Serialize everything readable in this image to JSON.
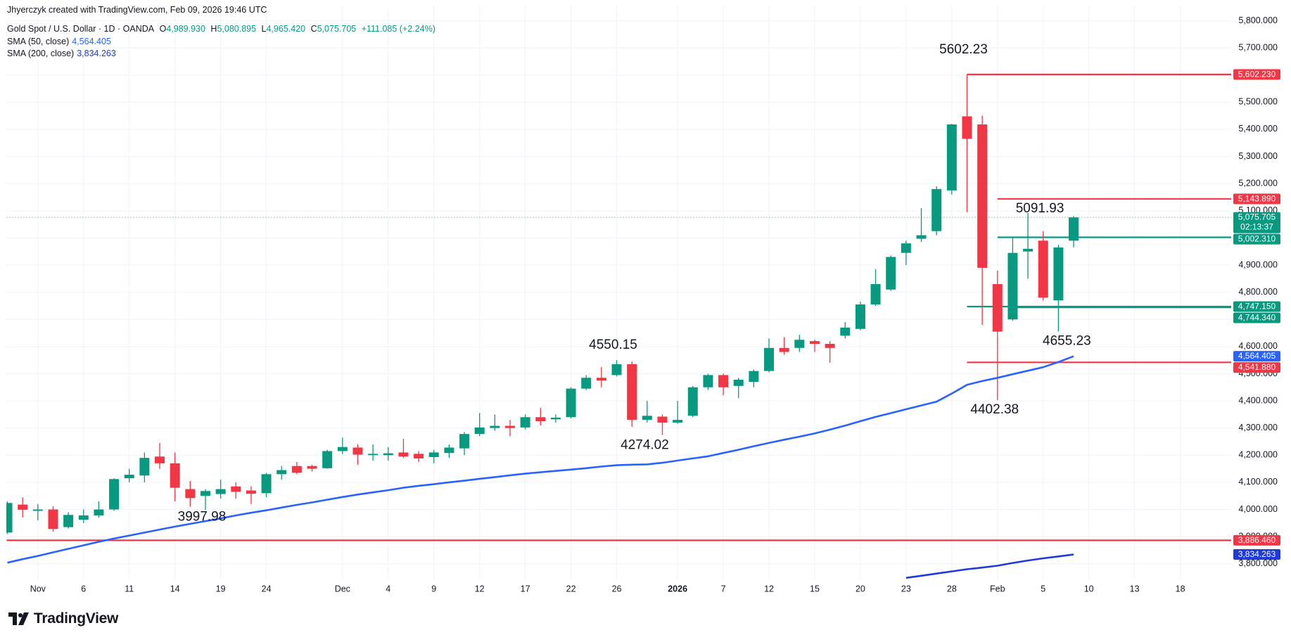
{
  "chart_data": {
    "type": "candlestick",
    "attribution": "Jhyerczyk created with TradingView.com, Feb 09, 2026 19:46 UTC",
    "title": "Gold Spot / U.S. Dollar · 1D · OANDA",
    "ohlc_legend": [
      {
        "key": "O",
        "label": "4,989.930"
      },
      {
        "key": "H",
        "label": "5,080.895"
      },
      {
        "key": "L",
        "label": "4,965.420"
      },
      {
        "key": "C",
        "label": "5,075.705"
      }
    ],
    "change_label": "+111.085 (+2.24%)",
    "price_countdown": "02:13:37",
    "up_color": "#089981",
    "down_color": "#f23645",
    "categories": [
      null,
      null,
      "Nov",
      null,
      null,
      "6",
      null,
      null,
      "11",
      null,
      null,
      "14",
      null,
      null,
      "19",
      null,
      null,
      "24",
      null,
      null,
      null,
      null,
      "Dec",
      null,
      null,
      "4",
      null,
      null,
      "9",
      null,
      null,
      "12",
      null,
      null,
      "17",
      null,
      null,
      "22",
      null,
      null,
      "26",
      null,
      null,
      null,
      "2026",
      null,
      null,
      "7",
      null,
      null,
      "12",
      null,
      null,
      "15",
      null,
      null,
      "20",
      null,
      null,
      "23",
      null,
      null,
      "28",
      null,
      null,
      "Feb",
      null,
      null,
      "5",
      null,
      null,
      "10",
      null,
      null,
      "13",
      null,
      null,
      "18"
    ],
    "open": [
      3915,
      4018,
      3995,
      4000,
      3935,
      3962,
      3978,
      4000,
      4115,
      4125,
      4195,
      4170,
      4075,
      4050,
      4057,
      4085,
      4070,
      4060,
      4130,
      4160,
      4160,
      4152,
      4215,
      4228,
      4200,
      4200,
      4210,
      4205,
      4193,
      4208,
      4225,
      4278,
      4300,
      4308,
      4302,
      4340,
      4332,
      4340,
      4445,
      4485,
      4495,
      4535,
      4330,
      4342,
      4320,
      4345,
      4450,
      4495,
      4455,
      4470,
      4510,
      4595,
      4595,
      4620,
      4610,
      4640,
      4665,
      4755,
      4810,
      4945,
      4997,
      5025,
      5175,
      5448,
      5418,
      4830,
      4700,
      4950,
      4990,
      4770,
      4989.93,
      null,
      null,
      null,
      null,
      null,
      null,
      null
    ],
    "high": [
      4030,
      4045,
      4020,
      4012,
      3990,
      4000,
      4030,
      4115,
      4150,
      4210,
      4245,
      4210,
      4105,
      4075,
      4110,
      4100,
      4085,
      4135,
      4160,
      4175,
      4165,
      4220,
      4265,
      4240,
      4240,
      4230,
      4260,
      4215,
      4220,
      4240,
      4285,
      4355,
      4350,
      4330,
      4350,
      4375,
      4350,
      4450,
      4495,
      4525,
      4550.15,
      4545,
      4400,
      4350,
      4400,
      4455,
      4500,
      4500,
      4485,
      4515,
      4630,
      4635,
      4643,
      4625,
      4620,
      4690,
      4765,
      4885,
      4935,
      4990,
      5110,
      5190,
      5420,
      5602.23,
      5450,
      4880,
      5000,
      5091.93,
      5025,
      4975,
      5080.895,
      null,
      null,
      null,
      null,
      null,
      null,
      null
    ],
    "low": [
      3910,
      3970,
      3960,
      3918,
      3930,
      3950,
      3970,
      3995,
      4100,
      4100,
      4150,
      4030,
      4010,
      3997.98,
      4040,
      4040,
      4020,
      4045,
      4110,
      4130,
      4140,
      4150,
      4205,
      4165,
      4180,
      4180,
      4190,
      4175,
      4170,
      4190,
      4200,
      4270,
      4290,
      4270,
      4295,
      4310,
      4320,
      4335,
      4440,
      4450,
      4490,
      4305,
      4320,
      4274.02,
      4315,
      4340,
      4440,
      4420,
      4410,
      4450,
      4505,
      4570,
      4580,
      4580,
      4540,
      4630,
      4660,
      4750,
      4805,
      4900,
      4985,
      5010,
      5160,
      5095,
      4680,
      4402.38,
      4695,
      4850,
      4770,
      4655.23,
      4965.42,
      null,
      null,
      null,
      null,
      null,
      null,
      null
    ],
    "close": [
      4024,
      3999,
      4000,
      3928,
      3980,
      3978,
      4000,
      4112,
      4128,
      4190,
      4170,
      4080,
      4042,
      4068,
      4075,
      4065,
      4058,
      4130,
      4145,
      4135,
      4150,
      4215,
      4230,
      4202,
      4205,
      4207,
      4195,
      4188,
      4210,
      4228,
      4278,
      4302,
      4308,
      4300,
      4340,
      4325,
      4338,
      4445,
      4485,
      4475,
      4535,
      4330,
      4345,
      4320,
      4330,
      4450,
      4495,
      4450,
      4478,
      4510,
      4595,
      4580,
      4625,
      4610,
      4595,
      4670,
      4755,
      4830,
      4930,
      4980,
      5010,
      5180,
      5418,
      5365,
      4890,
      4655,
      4945,
      4960,
      4780,
      4965,
      5075.705,
      null,
      null,
      null,
      null,
      null,
      null,
      null
    ],
    "overlays": [
      {
        "name": "SMA (50, close)",
        "color": "#2962ff",
        "last_label": "4,564.405",
        "values": [
          3804,
          3817,
          3829,
          3842,
          3855,
          3868,
          3881,
          3893,
          3904,
          3915,
          3926,
          3937,
          3947,
          3957,
          3967,
          3978,
          3988,
          3997,
          4007,
          4017,
          4026,
          4036,
          4046,
          4055,
          4063,
          4071,
          4080,
          4087,
          4093,
          4100,
          4106,
          4113,
          4119,
          4126,
          4132,
          4137,
          4142,
          4147,
          4152,
          4158,
          4163,
          4165,
          4166,
          4172,
          4180,
          4188,
          4196,
          4208,
          4220,
          4233,
          4245,
          4257,
          4268,
          4280,
          4294,
          4309,
          4325,
          4341,
          4355,
          4369,
          4383,
          4397,
          4427,
          4459,
          4473,
          4485,
          4498,
          4511,
          4524,
          4543,
          4564.405,
          null,
          null,
          null,
          null,
          null,
          null,
          null
        ]
      },
      {
        "name": "SMA (200, close)",
        "color": "#1e3ad9",
        "last_label": "3,834.263",
        "values": [
          null,
          null,
          null,
          null,
          null,
          null,
          null,
          null,
          null,
          null,
          null,
          null,
          null,
          null,
          null,
          null,
          null,
          null,
          null,
          null,
          null,
          null,
          null,
          null,
          null,
          null,
          null,
          null,
          null,
          null,
          null,
          null,
          null,
          null,
          null,
          null,
          null,
          null,
          null,
          null,
          null,
          null,
          null,
          null,
          null,
          null,
          null,
          null,
          null,
          null,
          null,
          null,
          null,
          null,
          null,
          null,
          null,
          null,
          null,
          3748,
          3756,
          3764,
          3772,
          3780,
          3786,
          3793,
          3803,
          3812,
          3820,
          3827,
          3834.263,
          null,
          null,
          null,
          null,
          null,
          null,
          null
        ]
      }
    ],
    "levels": [
      {
        "value": 5602.23,
        "label": "5,602.230",
        "color": "#f23645"
      },
      {
        "value": 5143.89,
        "label": "5,143.890",
        "color": "#f23645"
      },
      {
        "value": 5002.31,
        "label": "5,002.310",
        "color": "#089981"
      },
      {
        "value": 4747.15,
        "label": "4,747.150",
        "color": "#089981"
      },
      {
        "value": 4744.34,
        "label": "4,744.340",
        "color": "#089981"
      },
      {
        "value": 4541.88,
        "label": "4,541.880",
        "color": "#f23645"
      },
      {
        "value": 3886.46,
        "label": "3,886.460",
        "color": "#f23645"
      }
    ],
    "annotations": [
      "5602.23",
      "5091.93",
      "4550.15",
      "4655.23",
      "4402.38",
      "4274.02",
      "3997.98"
    ],
    "ylim": [
      3745,
      5852
    ],
    "yticks": [
      {
        "value": 3800,
        "label": "3,800.000"
      },
      {
        "value": 3900,
        "label": "3,900.000"
      },
      {
        "value": 4000,
        "label": "4,000.000"
      },
      {
        "value": 4100,
        "label": "4,100.000"
      },
      {
        "value": 4200,
        "label": "4,200.000"
      },
      {
        "value": 4300,
        "label": "4,300.000"
      },
      {
        "value": 4400,
        "label": "4,400.000"
      },
      {
        "value": 4500,
        "label": "4,500.000"
      },
      {
        "value": 4600,
        "label": "4,600.000"
      },
      {
        "value": 4700,
        "label": "4,700.000"
      },
      {
        "value": 4800,
        "label": "4,800.000"
      },
      {
        "value": 4900,
        "label": "4,900.000"
      },
      {
        "value": 5000,
        "label": "5,000.000"
      },
      {
        "value": 5100,
        "label": "5,100.000"
      },
      {
        "value": 5200,
        "label": "5,200.000"
      },
      {
        "value": 5300,
        "label": "5,300.000"
      },
      {
        "value": 5400,
        "label": "5,400.000"
      },
      {
        "value": 5500,
        "label": "5,500.000"
      },
      {
        "value": 5600,
        "label": "5,600.000"
      },
      {
        "value": 5700,
        "label": "5,700.000"
      },
      {
        "value": 5800,
        "label": "5,800.000"
      }
    ],
    "grid": true,
    "logo": "TradingView"
  }
}
